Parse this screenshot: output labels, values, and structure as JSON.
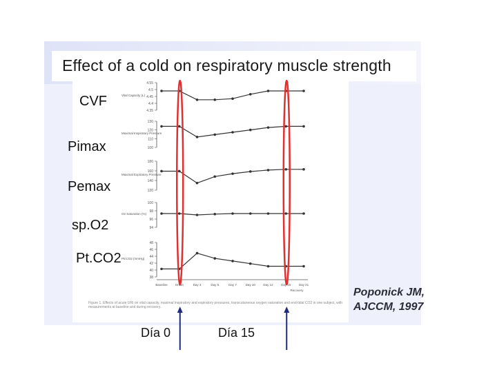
{
  "slide": {
    "title": "Effect of a cold on respiratory muscle strength",
    "labels": [
      "CVF",
      "Pimax",
      "Pemax",
      "sp.O2",
      "Pt.CO2"
    ],
    "reference_line1": "Poponick JM,",
    "reference_line2": "AJCCM, 1997",
    "day_markers": [
      "Día 0",
      "Día 15"
    ],
    "caption": "Figure 1. Effects of acute URI on vital capacity, maximal inspiratory and expiratory pressures, transcutaneous oxygen saturation and end-tidal CO2 in one subject, with measurements at baseline and during recovery."
  },
  "colors": {
    "highlight": "#e03030",
    "arrow": "#1f2a7a",
    "series": "#333333"
  },
  "chart_data": {
    "type": "line",
    "categories": [
      "Baseline",
      "Onset",
      "Day 3",
      "Day 5",
      "Day 7",
      "Day 10",
      "Day 12",
      "Day 15",
      "Day 21"
    ],
    "category_sublabel": "Recovery",
    "panels": [
      {
        "ylabel": "Vital Capacity (L)",
        "ticks": [
          "4.55",
          "4.5",
          "4.45",
          "4.4",
          "4.35"
        ],
        "ylim": [
          4.35,
          4.55
        ],
        "values": [
          4.5,
          4.5,
          4.42,
          4.42,
          4.43,
          4.47,
          4.5,
          4.5,
          4.5
        ]
      },
      {
        "ylabel": "Maximal Inspiratory Pressure",
        "ticks": [
          "130",
          "120",
          "110",
          "100"
        ],
        "ylim": [
          95,
          130
        ],
        "values": [
          126,
          126,
          108,
          112,
          116,
          120,
          124,
          126,
          126
        ]
      },
      {
        "ylabel": "Maximal Expiratory Pressure",
        "ticks": [
          "180",
          "160",
          "140",
          "120"
        ],
        "ylim": [
          120,
          185
        ],
        "values": [
          165,
          165,
          132,
          150,
          158,
          164,
          168,
          170,
          170
        ]
      },
      {
        "ylabel": "O2 Saturation (%)",
        "ticks": [
          "100",
          "98",
          "96",
          "94"
        ],
        "ylim": [
          93,
          100
        ],
        "values": [
          97,
          97,
          96.5,
          96.8,
          97,
          97,
          97,
          97,
          97
        ]
      },
      {
        "ylabel": "PtcCO2 (mmHg)",
        "ticks": [
          "48",
          "46",
          "44",
          "42",
          "40",
          "38"
        ],
        "ylim": [
          37,
          48
        ],
        "values": [
          39,
          39,
          45,
          43,
          42,
          41,
          40,
          40,
          40
        ]
      }
    ]
  }
}
